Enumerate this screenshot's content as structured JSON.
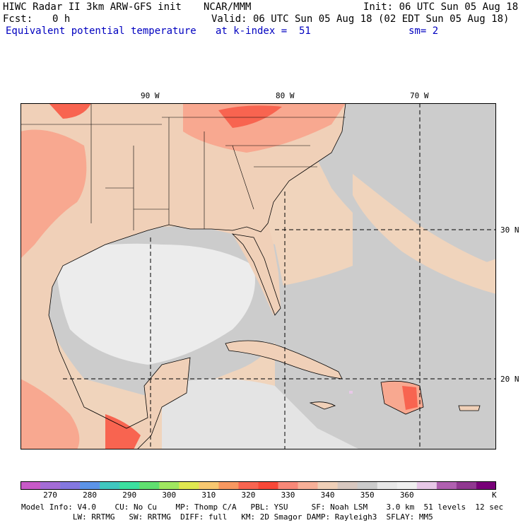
{
  "header": {
    "title": "HIWC Radar II 3km ARW-GFS init",
    "org": "NCAR/MMM",
    "init": "Init: 06 UTC Sun 05 Aug 18",
    "fcst_label": "Fcst:",
    "fcst_value": "0 h",
    "valid": "Valid: 06 UTC Sun 05 Aug 18 (02 EDT Sun 05 Aug 18)",
    "field": "Equivalent potential temperature",
    "level": "at k-index =  51",
    "smooth": "sm= 2"
  },
  "map": {
    "lon_labels": [
      "90 W",
      "80 W",
      "70 W"
    ],
    "lat_labels": [
      "30 N",
      "20 N"
    ],
    "grid_style": "dashed"
  },
  "colorbar": {
    "unit": "K",
    "tick_labels": [
      "270",
      "280",
      "290",
      "300",
      "310",
      "320",
      "330",
      "340",
      "350",
      "360"
    ],
    "colors": [
      "#c85ac8",
      "#a46cd6",
      "#8478e0",
      "#5c94e8",
      "#40c8c0",
      "#3ce0a0",
      "#60e070",
      "#a0e860",
      "#e0e850",
      "#f8c870",
      "#f89860",
      "#f86450",
      "#f84838",
      "#f88878",
      "#f8b098",
      "#f0d0b8",
      "#d8c8c0",
      "#cccccc",
      "#e8e8e8",
      "#f0f0f0",
      "#e8c8e8",
      "#b060b0",
      "#903890",
      "#780078"
    ]
  },
  "footer": {
    "line1": "Model Info: V4.0    CU: No Cu    MP: Thomp C/A   PBL: YSU     SF: Noah LSM    3.0 km  51 levels  12 sec",
    "line2": "           LW: RRTMG   SW: RRTMG  DIFF: full   KM: 2D Smagor DAMP: Rayleigh3  SFLAY: MM5"
  },
  "palette": {
    "ocean_warm": "#f0d4bc",
    "ocean_gray": "#cccccc",
    "ocean_light": "#ececec",
    "land_tan": "#f0d0b8",
    "land_salmon": "#f8a890",
    "land_red": "#f86450",
    "pink_spot": "#e8c8e8"
  }
}
